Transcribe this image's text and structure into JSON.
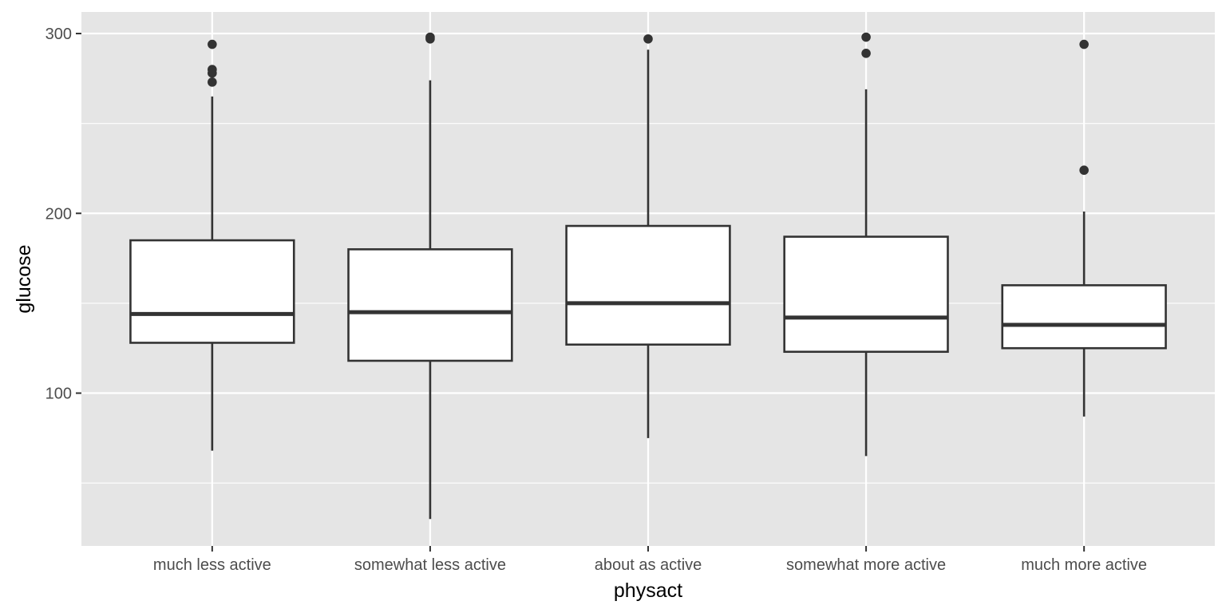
{
  "chart_data": {
    "type": "boxplot",
    "xlabel": "physact",
    "ylabel": "glucose",
    "categories": [
      "much less active",
      "somewhat less active",
      "about as active",
      "somewhat more active",
      "much more active"
    ],
    "ylim": [
      15,
      312
    ],
    "y_ticks": [
      100,
      200,
      300
    ],
    "y_minor_ticks": [
      50,
      150,
      250
    ],
    "grid": true,
    "boxes": [
      {
        "category": "much less active",
        "lower_whisker": 68,
        "q1": 128,
        "median": 144,
        "q3": 185,
        "upper_whisker": 265,
        "outliers": [
          294,
          280,
          278,
          273
        ]
      },
      {
        "category": "somewhat less active",
        "lower_whisker": 30,
        "q1": 118,
        "median": 145,
        "q3": 180,
        "upper_whisker": 274,
        "outliers": [
          298,
          297
        ]
      },
      {
        "category": "about as active",
        "lower_whisker": 75,
        "q1": 127,
        "median": 150,
        "q3": 193,
        "upper_whisker": 291,
        "outliers": [
          297
        ]
      },
      {
        "category": "somewhat more active",
        "lower_whisker": 65,
        "q1": 123,
        "median": 142,
        "q3": 187,
        "upper_whisker": 269,
        "outliers": [
          298,
          289
        ]
      },
      {
        "category": "much more active",
        "lower_whisker": 87,
        "q1": 125,
        "median": 138,
        "q3": 160,
        "upper_whisker": 201,
        "outliers": [
          294,
          224
        ]
      }
    ],
    "colors": {
      "panel": "#e5e5e5",
      "grid": "#ffffff",
      "box_fill": "#ffffff",
      "box_line": "#333333",
      "outlier": "#333333"
    }
  }
}
